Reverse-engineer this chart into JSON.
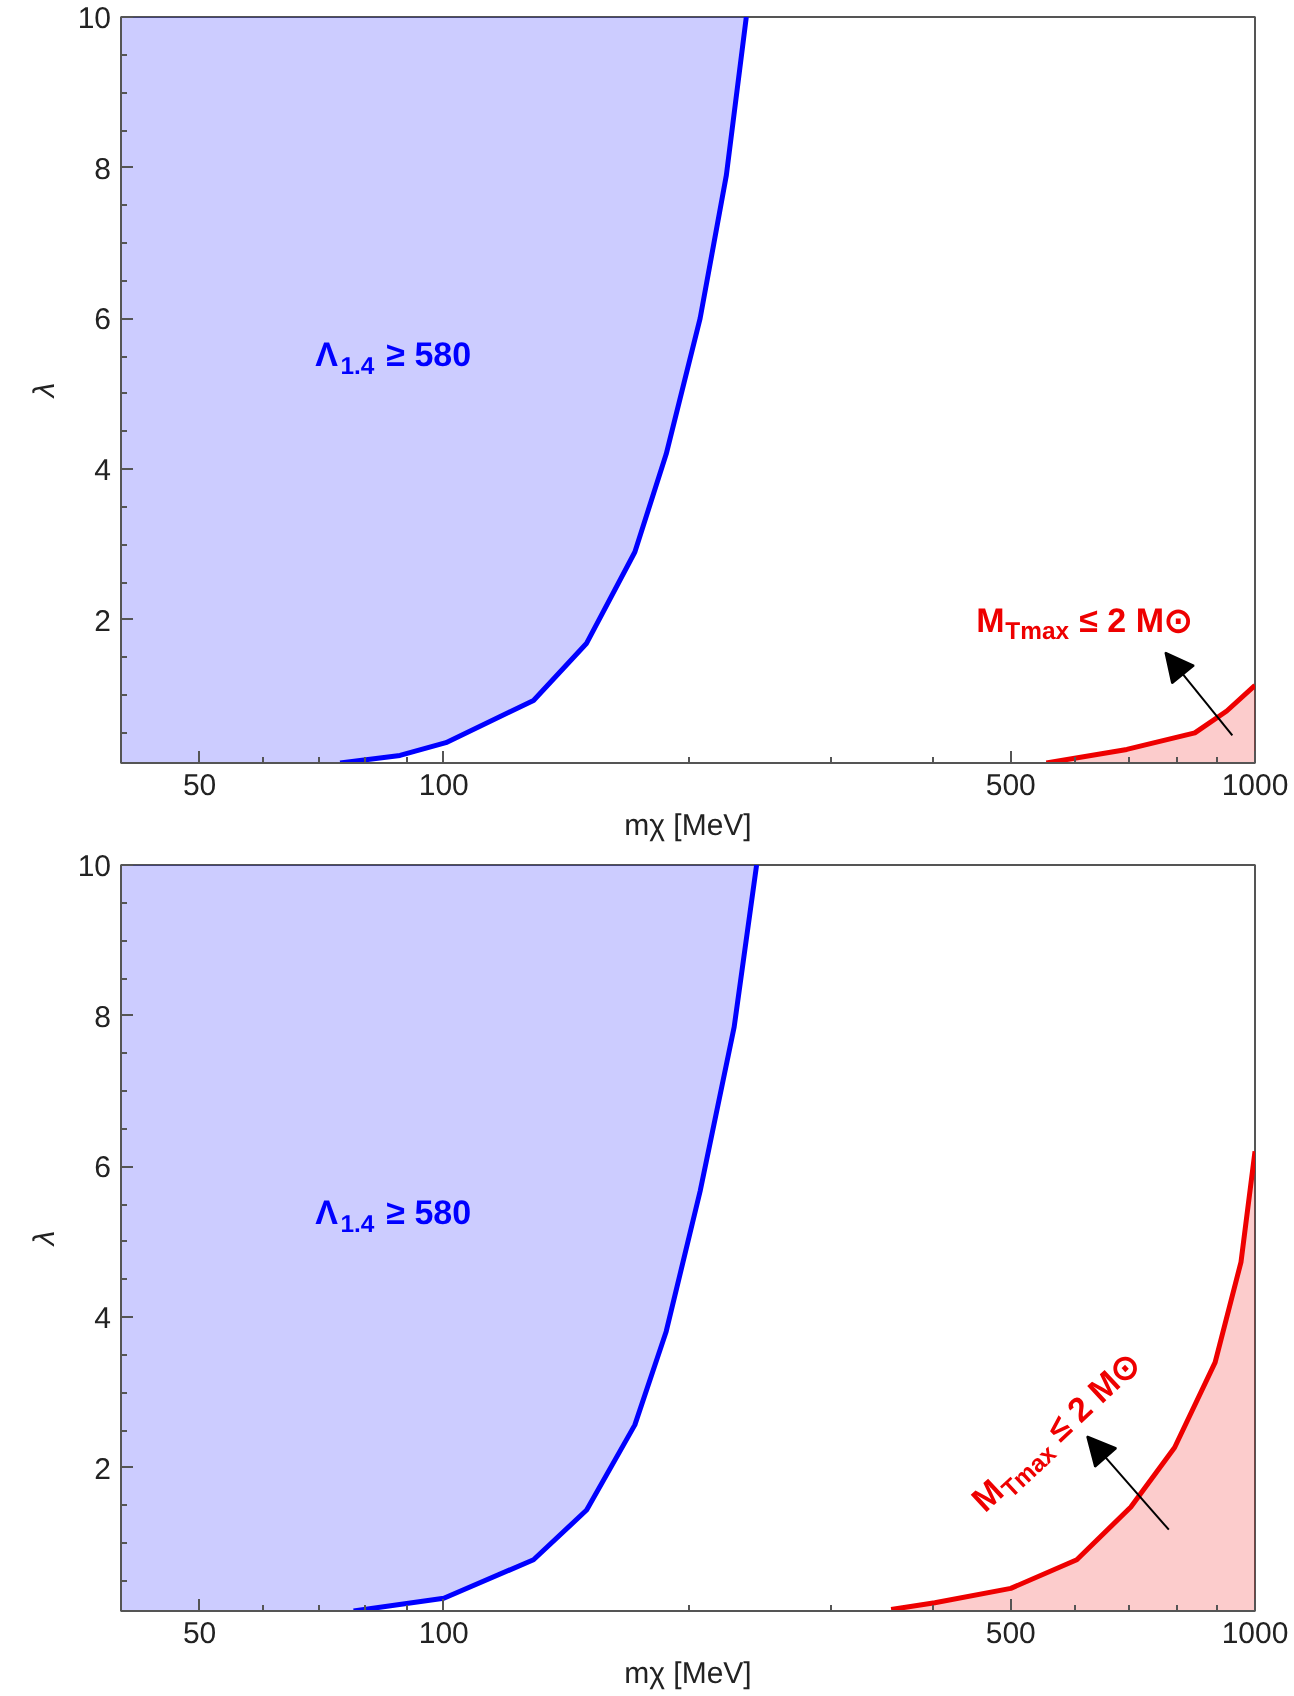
{
  "chart_data": [
    {
      "type": "area",
      "xlabel": "mχ [MeV]",
      "ylabel": "λ",
      "log": "x",
      "xlim": [
        40,
        1000
      ],
      "ylim": [
        0.1,
        10
      ],
      "xticks": [
        50,
        100,
        500,
        1000
      ],
      "yticks": [
        2,
        4,
        6,
        8,
        10
      ],
      "grid": false,
      "series": [
        {
          "type": "line",
          "color": "#0000ff",
          "x": [
            40,
            74.5,
            88.3,
            100.6,
            129,
            150,
            172,
            188,
            207,
            223,
            236
          ],
          "values": [
            null,
            0.1,
            0.2,
            0.37,
            0.93,
            1.69,
            2.9,
            4.2,
            6.0,
            7.9,
            10
          ],
          "lower": [
            0.1,
            0.1,
            0.2,
            0.37,
            0.93,
            1.69,
            2.9,
            4.2,
            6.0,
            7.9,
            10
          ],
          "upper": [
            10,
            10,
            10,
            10,
            10,
            10,
            10,
            10,
            10,
            10,
            10
          ]
        },
        {
          "color": "#ee0000",
          "x": [
            553,
            695,
            843,
            923,
            1000
          ],
          "values": [
            0.1,
            0.28,
            0.5,
            0.79,
            1.13
          ]
        }
      ],
      "annotations": [
        "Λ$_{1.4}$ ≥ 580",
        "M$_{Tmax}$ ≤ 2 M⊙"
      ]
    },
    {
      "type": "area",
      "xlabel": "mχ [MeV]",
      "ylabel": "λ",
      "log": "x",
      "xlim": [
        40,
        1000
      ],
      "ylim": [
        0.1,
        10
      ],
      "xticks": [
        50,
        100,
        500,
        1000
      ],
      "yticks": [
        2,
        4,
        6,
        8,
        10
      ],
      "grid": false,
      "series": [
        {
          "type": "line",
          "color": "#0000ff",
          "x": [
            40,
            77.4,
            100,
            129,
            150,
            172,
            188,
            207,
            228,
            243
          ],
          "values": [
            null,
            0.1,
            0.27,
            0.78,
            1.44,
            2.57,
            3.81,
            5.67,
            7.85,
            10
          ],
          "lower": [
            0.1,
            0.1,
            0.27,
            0.78,
            1.44,
            2.57,
            3.81,
            5.67,
            7.85,
            10
          ],
          "upper": [
            10,
            10,
            10,
            10,
            10,
            10,
            10,
            10,
            10,
            10
          ]
        },
        {
          "color": "#ee0000",
          "x": [
            356,
            403,
            500,
            603,
            703,
            796,
            893,
            961,
            1000
          ],
          "values": [
            0.12,
            0.21,
            0.4,
            0.78,
            1.48,
            2.27,
            3.4,
            4.73,
            6.2
          ]
        }
      ],
      "annotations": [
        "Λ$_{1.4}$ ≥ 580",
        "M$_{Tmax}$ ≤ 2 M⊙"
      ]
    }
  ]
}
